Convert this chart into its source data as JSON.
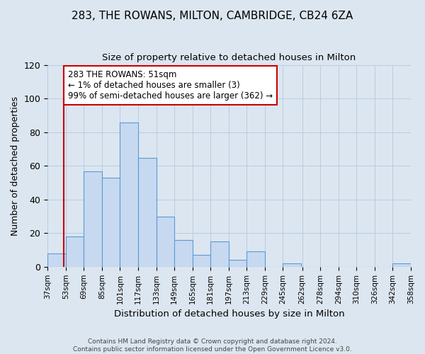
{
  "title": "283, THE ROWANS, MILTON, CAMBRIDGE, CB24 6ZA",
  "subtitle": "Size of property relative to detached houses in Milton",
  "xlabel": "Distribution of detached houses by size in Milton",
  "ylabel": "Number of detached properties",
  "bin_labels": [
    "37sqm",
    "53sqm",
    "69sqm",
    "85sqm",
    "101sqm",
    "117sqm",
    "133sqm",
    "149sqm",
    "165sqm",
    "181sqm",
    "197sqm",
    "213sqm",
    "229sqm",
    "245sqm",
    "262sqm",
    "278sqm",
    "294sqm",
    "310sqm",
    "326sqm",
    "342sqm",
    "358sqm"
  ],
  "bar_values": [
    8,
    18,
    57,
    53,
    86,
    65,
    30,
    16,
    7,
    15,
    4,
    9,
    0,
    2,
    0,
    0,
    0,
    0,
    0,
    2
  ],
  "bin_edges": [
    37,
    53,
    69,
    85,
    101,
    117,
    133,
    149,
    165,
    181,
    197,
    213,
    229,
    245,
    262,
    278,
    294,
    310,
    326,
    342,
    358
  ],
  "bar_color": "#c6d9f0",
  "bar_edge_color": "#5b9bd5",
  "ylim": [
    0,
    120
  ],
  "yticks": [
    0,
    20,
    40,
    60,
    80,
    100,
    120
  ],
  "property_line_x": 51,
  "property_line_color": "#cc0000",
  "annotation_title": "283 THE ROWANS: 51sqm",
  "annotation_line1": "← 1% of detached houses are smaller (3)",
  "annotation_line2": "99% of semi-detached houses are larger (362) →",
  "annotation_box_color": "#cc0000",
  "footer_line1": "Contains HM Land Registry data © Crown copyright and database right 2024.",
  "footer_line2": "Contains public sector information licensed under the Open Government Licence v3.0.",
  "background_color": "#dce6f0",
  "plot_bg_color": "#dce6f0"
}
